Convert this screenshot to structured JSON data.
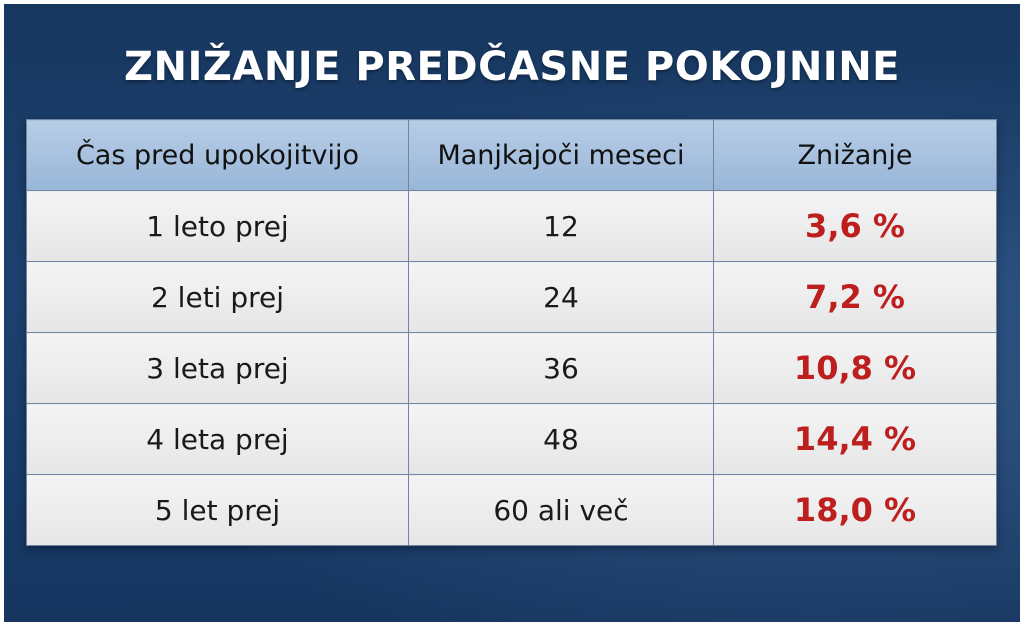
{
  "title": "ZNIŽANJE PREDČASNE POKOJNINE",
  "chart_data": {
    "type": "table",
    "title": "ZNIŽANJE PREDČASNE POKOJNINE",
    "columns": [
      "Čas pred upokojitvijo",
      "Manjkajoči meseci",
      "Znižanje"
    ],
    "rows": [
      [
        "1 leto prej",
        "12",
        "3,6 %"
      ],
      [
        "2 leti prej",
        "24",
        "7,2 %"
      ],
      [
        "3 leta prej",
        "36",
        "10,8 %"
      ],
      [
        "4 leta prej",
        "48",
        "14,4 %"
      ],
      [
        "5 let prej",
        "60 ali več",
        "18,0 %"
      ]
    ],
    "colors": {
      "header_bg": "#a8c2e0",
      "cell_bg": "#eeeeee",
      "highlight_text": "#bd1e1e",
      "background": "#1c4170"
    }
  }
}
